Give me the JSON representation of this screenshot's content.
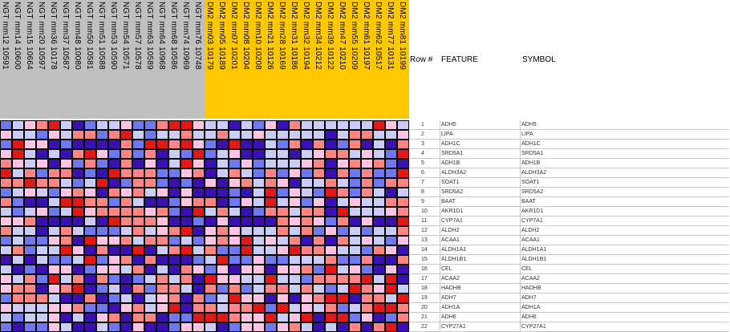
{
  "chart_data": {
    "type": "heatmap",
    "groups": [
      {
        "name": "NGT",
        "color": "#c0c0c0"
      },
      {
        "name": "DM2",
        "color": "#ffc800"
      }
    ],
    "columns": [
      "NGT mm12 10591",
      "NGT mm14 10600",
      "NGT mm15 10664",
      "NGT mm20 10597",
      "NGT mm36 10178",
      "NGT mm37 10587",
      "NGT mm48 10080",
      "NGT mm50 10581",
      "NGT mm51 10588",
      "NGT mm53 10590",
      "NGT mm54 10571",
      "NGT mm57 10578",
      "NGT mm63 10589",
      "NGT mm64 10968",
      "NGT mm68 10586",
      "NGT mm74 10969",
      "NGT mm76 10748",
      "DM2 mm03 10179",
      "DM2 mm05 10189",
      "DM2 mm07 10201",
      "DM2 mm08 10204",
      "DM2 mm10 10208",
      "DM2 mm21 10126",
      "DM2 mm28 10169",
      "DM2 mm31 10186",
      "DM2 mm32 10194",
      "DM2 mm34 10212",
      "DM2 mm39 10122",
      "DM2 mm47 10210",
      "DM2 mm55 10209",
      "DM2 mm61 10197",
      "DM2 mm62 10517",
      "DM2 mm77 10131",
      "DM2 mm81 10199"
    ],
    "color_scale": {
      "-3": "#3a10b0",
      "-2": "#7078f0",
      "-1": "#ccccf8",
      "1": "#ffc4e4",
      "2": "#ff8484",
      "3": "#e01818"
    },
    "values": [
      [
        -2,
        -1,
        1,
        2,
        3,
        -1,
        -3,
        -2,
        -1,
        -1,
        1,
        -2,
        -2,
        2,
        3,
        3,
        1,
        -1,
        -1,
        -3,
        -1,
        -2,
        1,
        -3,
        2,
        -1,
        -1,
        -1,
        -1,
        -1,
        -1,
        3,
        1,
        -1
      ],
      [
        1,
        -1,
        -1,
        -2,
        1,
        -1,
        2,
        2,
        -2,
        2,
        3,
        -1,
        -2,
        -1,
        -1,
        2,
        -1,
        -1,
        2,
        -1,
        -1,
        1,
        -1,
        -1,
        -1,
        -1,
        -1,
        -3,
        -1,
        2,
        2,
        -1,
        -1,
        1
      ],
      [
        -2,
        3,
        1,
        1,
        -3,
        -2,
        -3,
        -3,
        -3,
        -3,
        2,
        -2,
        3,
        3,
        2,
        3,
        1,
        -2,
        -3,
        3,
        -3,
        -3,
        -1,
        -2,
        2,
        -3,
        2,
        -3,
        -2,
        2,
        -3,
        -1,
        -3,
        2
      ],
      [
        1,
        3,
        -1,
        -3,
        -1,
        -3,
        2,
        3,
        1,
        -2,
        2,
        -2,
        2,
        -3,
        -1,
        -2,
        3,
        -2,
        -1,
        1,
        -3,
        -3,
        -1,
        -1,
        -3,
        -1,
        1,
        2,
        2,
        -1,
        1,
        -1,
        -2,
        3
      ],
      [
        2,
        1,
        -1,
        1,
        -3,
        1,
        -2,
        2,
        -2,
        -3,
        2,
        -3,
        1,
        -3,
        -1,
        3,
        1,
        -3,
        -1,
        -2,
        1,
        -2,
        -1,
        -1,
        -1,
        1,
        2,
        -3,
        1,
        2,
        1,
        2,
        -2,
        -3
      ],
      [
        3,
        -1,
        2,
        -2,
        2,
        2,
        -3,
        -2,
        -3,
        3,
        2,
        2,
        2,
        -2,
        -2,
        1,
        2,
        -3,
        -1,
        2,
        -1,
        -2,
        2,
        -2,
        1,
        -2,
        2,
        -3,
        2,
        -2,
        2,
        -2,
        -2,
        3
      ],
      [
        2,
        2,
        3,
        2,
        2,
        -1,
        -2,
        -1,
        3,
        -3,
        -2,
        2,
        2,
        -2,
        -3,
        -2,
        -3,
        1,
        -3,
        1,
        2,
        -1,
        2,
        1,
        -3,
        -1,
        -1,
        2,
        -1,
        -2,
        2,
        -2,
        2,
        2
      ],
      [
        -2,
        -1,
        1,
        -1,
        -2,
        1,
        2,
        1,
        -3,
        2,
        1,
        2,
        -1,
        1,
        -3,
        1,
        -3,
        -3,
        -3,
        -2,
        -3,
        -1,
        3,
        -2,
        1,
        -1,
        -2,
        3,
        2,
        -2,
        2,
        -1,
        -3,
        -1
      ],
      [
        2,
        -2,
        -3,
        -3,
        -1,
        3,
        3,
        2,
        2,
        -2,
        2,
        -1,
        -3,
        -3,
        -2,
        1,
        2,
        2,
        -3,
        -2,
        1,
        -1,
        3,
        -1,
        1,
        -2,
        1,
        -3,
        -1,
        1,
        -1,
        -1,
        2,
        2
      ],
      [
        -1,
        -2,
        -1,
        1,
        -2,
        -1,
        3,
        1,
        2,
        2,
        2,
        2,
        1,
        2,
        -2,
        -3,
        3,
        -1,
        2,
        -1,
        -3,
        -2,
        2,
        2,
        -1,
        2,
        2,
        -3,
        3,
        -1,
        -1,
        -1,
        1,
        2
      ],
      [
        1,
        1,
        2,
        -3,
        -3,
        -3,
        -3,
        -1,
        -3,
        3,
        2,
        2,
        2,
        1,
        -3,
        -3,
        -2,
        -3,
        1,
        -3,
        -3,
        -3,
        -3,
        2,
        1,
        2,
        1,
        -2,
        2,
        -3,
        1,
        -3,
        -3,
        3
      ],
      [
        2,
        -1,
        -1,
        -3,
        -1,
        2,
        -1,
        -2,
        -2,
        -2,
        -1,
        2,
        -1,
        1,
        2,
        3,
        -3,
        1,
        2,
        1,
        -1,
        -1,
        -1,
        2,
        -1,
        2,
        -2,
        1,
        -2,
        -1,
        -2,
        -1,
        -1,
        2
      ],
      [
        -2,
        -1,
        -2,
        -2,
        1,
        2,
        -3,
        3,
        1,
        1,
        2,
        -1,
        2,
        2,
        -2,
        -1,
        -2,
        1,
        2,
        1,
        3,
        -1,
        1,
        -1,
        2,
        -3,
        2,
        -3,
        2,
        -1,
        1,
        -1,
        -2,
        1
      ],
      [
        -1,
        2,
        -2,
        -1,
        -1,
        3,
        1,
        -3,
        2,
        -3,
        -3,
        3,
        -3,
        -1,
        2,
        3,
        -1,
        2,
        -2,
        -2,
        3,
        -1,
        -1,
        1,
        3,
        2,
        2,
        1,
        -1,
        -1,
        -2,
        2,
        1,
        -3
      ],
      [
        -3,
        -1,
        -3,
        -1,
        -2,
        -2,
        -1,
        3,
        -2,
        1,
        2,
        -3,
        2,
        -3,
        -3,
        -3,
        -2,
        -1,
        3,
        -2,
        -2,
        1,
        -2,
        -2,
        -1,
        -1,
        -1,
        2,
        -2,
        -2,
        2,
        -3,
        -3,
        2
      ],
      [
        -1,
        -3,
        -2,
        -3,
        1,
        1,
        -3,
        -2,
        1,
        1,
        -1,
        2,
        -3,
        -1,
        -3,
        2,
        1,
        -2,
        1,
        -3,
        1,
        1,
        -3,
        1,
        1,
        2,
        -2,
        3,
        -1,
        1,
        -2,
        -3,
        1,
        -3
      ],
      [
        1,
        -1,
        2,
        -2,
        3,
        -1,
        2,
        -3,
        2,
        -2,
        -3,
        -2,
        -1,
        2,
        -1,
        2,
        -3,
        3,
        1,
        1,
        -1,
        -1,
        3,
        -1,
        -1,
        -2,
        2,
        2,
        2,
        2,
        3,
        -1,
        3,
        -3
      ],
      [
        1,
        2,
        2,
        -3,
        1,
        2,
        3,
        -3,
        -2,
        -1,
        -3,
        2,
        -2,
        2,
        2,
        -1,
        -3,
        2,
        -2,
        2,
        -2,
        -1,
        2,
        2,
        -1,
        2,
        -1,
        -2,
        -1,
        3,
        2,
        1,
        3,
        -1
      ],
      [
        -2,
        2,
        2,
        2,
        -1,
        -3,
        -3,
        2,
        -3,
        -2,
        -1,
        -3,
        -1,
        1,
        2,
        -3,
        2,
        -2,
        -1,
        3,
        1,
        1,
        -3,
        1,
        -3,
        1,
        2,
        3,
        3,
        -3,
        2,
        2,
        -1,
        3
      ],
      [
        1,
        -1,
        -1,
        -1,
        1,
        1,
        2,
        -2,
        -2,
        -3,
        1,
        2,
        -1,
        1,
        3,
        -3,
        2,
        2,
        -1,
        2,
        2,
        3,
        -2,
        3,
        -1,
        1,
        -1,
        2,
        -2,
        -1,
        2,
        3,
        3,
        2
      ],
      [
        -1,
        -2,
        -1,
        -1,
        1,
        -3,
        -1,
        -3,
        1,
        2,
        -3,
        2,
        2,
        -3,
        -2,
        -2,
        3,
        3,
        3,
        2,
        1,
        1,
        3,
        -1,
        1,
        3,
        -3,
        3,
        3,
        -2,
        1,
        -3,
        -2,
        2
      ],
      [
        -2,
        -3,
        -2,
        -2,
        1,
        -1,
        -3,
        -3,
        -1,
        -2,
        -3,
        1,
        -3,
        -3,
        -2,
        1,
        1,
        -1,
        -3,
        -2,
        1,
        1,
        -2,
        1,
        2,
        -1,
        -3,
        -1,
        -3,
        2,
        -3,
        2,
        3,
        -3
      ]
    ]
  },
  "table": {
    "headers": {
      "row": "Row #",
      "feature": "FEATURE",
      "symbol": "SYMBOL"
    },
    "rows": [
      {
        "n": "1",
        "feature": "ADH5",
        "symbol": "ADH5"
      },
      {
        "n": "2",
        "feature": "LIPA",
        "symbol": "LIPA"
      },
      {
        "n": "3",
        "feature": "ADH1C",
        "symbol": "ADH1C"
      },
      {
        "n": "4",
        "feature": "SRD5A1",
        "symbol": "SRD5A1"
      },
      {
        "n": "5",
        "feature": "ADH1B",
        "symbol": "ADH1B"
      },
      {
        "n": "6",
        "feature": "ALDH3A2",
        "symbol": "ALDH3A2"
      },
      {
        "n": "7",
        "feature": "SOAT1",
        "symbol": "SOAT1"
      },
      {
        "n": "8",
        "feature": "SRD5A2",
        "symbol": "SRD5A2"
      },
      {
        "n": "9",
        "feature": "BAAT",
        "symbol": "BAAT"
      },
      {
        "n": "10",
        "feature": "AKR1D1",
        "symbol": "AKR1D1"
      },
      {
        "n": "11",
        "feature": "CYP7A1",
        "symbol": "CYP7A1"
      },
      {
        "n": "12",
        "feature": "ALDH2",
        "symbol": "ALDH2"
      },
      {
        "n": "13",
        "feature": "ACAA1",
        "symbol": "ACAA1"
      },
      {
        "n": "14",
        "feature": "ALDH1A1",
        "symbol": "ALDH1A1"
      },
      {
        "n": "15",
        "feature": "ALDH1B1",
        "symbol": "ALDH1B1"
      },
      {
        "n": "16",
        "feature": "CEL",
        "symbol": "CEL"
      },
      {
        "n": "17",
        "feature": "ACAA2",
        "symbol": "ACAA2"
      },
      {
        "n": "18",
        "feature": "HADHB",
        "symbol": "HADHB"
      },
      {
        "n": "19",
        "feature": "ADH7",
        "symbol": "ADH7"
      },
      {
        "n": "20",
        "feature": "ADH1A",
        "symbol": "ADH1A"
      },
      {
        "n": "21",
        "feature": "ADH6",
        "symbol": "ADH6"
      },
      {
        "n": "22",
        "feature": "CYP27A1",
        "symbol": "CYP27A1"
      }
    ]
  }
}
